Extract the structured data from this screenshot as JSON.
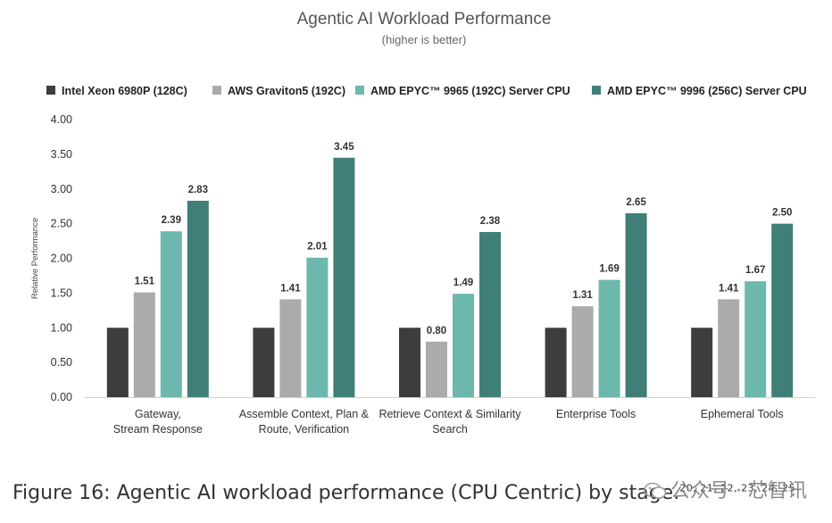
{
  "chart_data": {
    "type": "bar",
    "title": "Agentic AI Workload Performance",
    "subtitle": "(higher is better)",
    "ylabel": "Relative Performance",
    "xlabel": "",
    "ylim": [
      0,
      4
    ],
    "yticks": [
      "0.00",
      "0.50",
      "1.00",
      "1.50",
      "2.00",
      "2.50",
      "3.00",
      "3.50",
      "4.00"
    ],
    "grid": false,
    "legend_position": "top",
    "categories": [
      [
        "Gateway,",
        "Stream Response"
      ],
      [
        "Assemble Context, Plan &",
        "Route, Verification"
      ],
      [
        "Retrieve Context & Similarity",
        "Search"
      ],
      [
        "Enterprise Tools"
      ],
      [
        "Ephemeral Tools"
      ]
    ],
    "series": [
      {
        "name": "Intel Xeon 6980P (128C)",
        "color": "#3d3d3d",
        "values": [
          1.0,
          1.0,
          1.0,
          1.0,
          1.0
        ],
        "labels": [
          "",
          "",
          "",
          "",
          ""
        ]
      },
      {
        "name": "AWS Graviton5 (192C)",
        "color": "#ababab",
        "values": [
          1.51,
          1.41,
          0.8,
          1.31,
          1.41
        ],
        "labels": [
          "1.51",
          "1.41",
          "0.80",
          "1.31",
          "1.41"
        ]
      },
      {
        "name": "AMD EPYC™ 9965 (192C) Server CPU",
        "color": "#6cb8ac",
        "values": [
          2.39,
          2.01,
          1.49,
          1.69,
          1.67
        ],
        "labels": [
          "2.39",
          "2.01",
          "1.49",
          "1.69",
          "1.67"
        ]
      },
      {
        "name": "AMD EPYC™ 9996 (256C) Server CPU",
        "color": "#3f7f77",
        "values": [
          2.83,
          3.45,
          2.38,
          2.65,
          2.5
        ],
        "labels": [
          "2.83",
          "3.45",
          "2.38",
          "2.65",
          "2.50"
        ]
      }
    ]
  },
  "caption": {
    "text": "Figure 16: Agentic AI workload performance (CPU Centric) by stage.",
    "refs": "20, 21, 22, 23, 24, 25"
  },
  "watermark": {
    "icon": "wechat-icon",
    "text": "公众号 · 芯智讯"
  }
}
